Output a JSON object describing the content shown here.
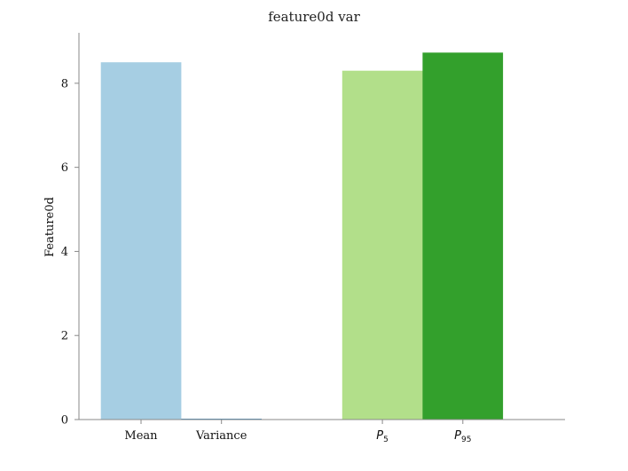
{
  "chart_data": {
    "type": "bar",
    "title": "feature0d var",
    "xlabel": "",
    "ylabel": "Feature0d",
    "ylim": [
      0,
      9.2
    ],
    "yticks": [
      0,
      2,
      4,
      6,
      8
    ],
    "grid": false,
    "legend": "none",
    "categories": [
      {
        "label": "Mean",
        "base": "",
        "sub": ""
      },
      {
        "label": "Variance",
        "base": "",
        "sub": ""
      },
      {
        "label": "",
        "base": "",
        "sub": ""
      },
      {
        "label": "",
        "base": "P",
        "sub": "5"
      },
      {
        "label": "",
        "base": "P",
        "sub": "95"
      }
    ],
    "values": [
      8.5,
      0.02,
      null,
      8.3,
      8.73
    ],
    "colors": [
      "#a6cee3",
      "#1f78b4",
      "#ffffff",
      "#b2df8a",
      "#33a02c"
    ]
  }
}
